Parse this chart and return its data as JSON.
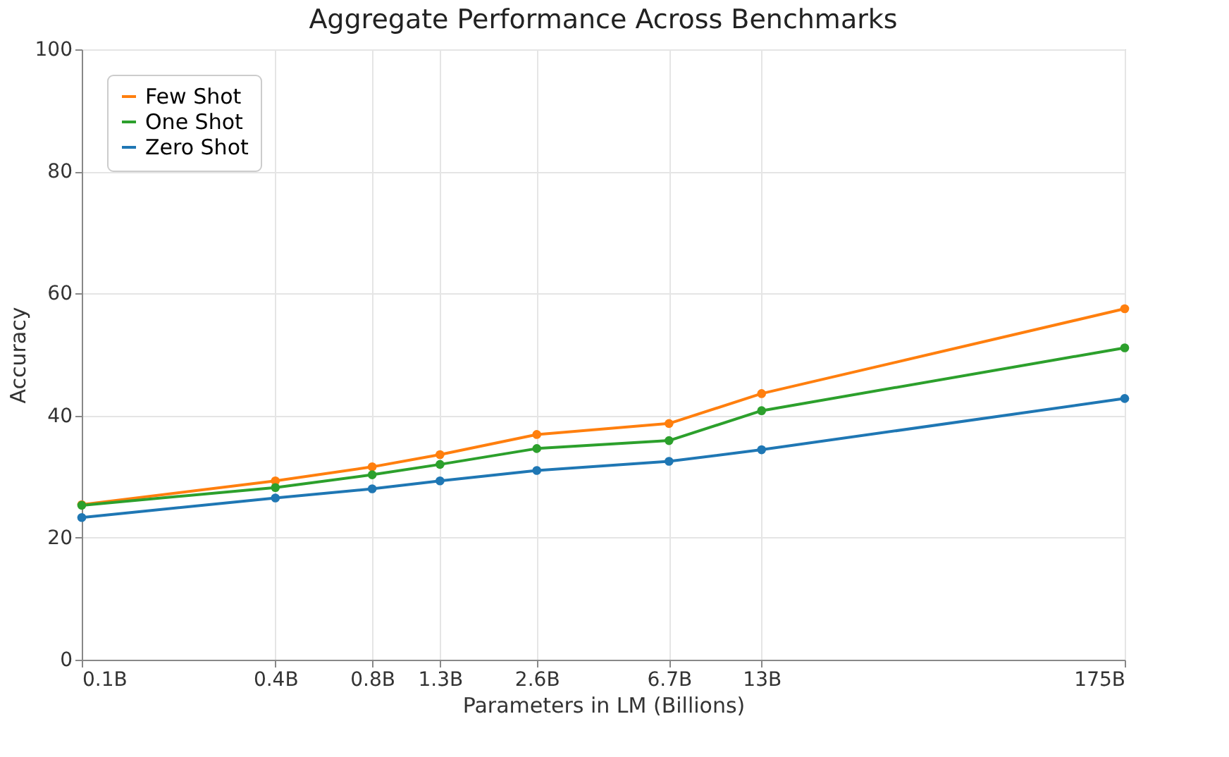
{
  "chart_data": {
    "type": "line",
    "title": "Aggregate Performance Across Benchmarks",
    "xlabel": "Parameters in LM (Billions)",
    "ylabel": "Accuracy",
    "x": [
      0.1,
      0.4,
      0.8,
      1.3,
      2.6,
      6.7,
      13,
      175
    ],
    "series": [
      {
        "name": "Few Shot",
        "color": "#ff7f0e",
        "values": [
          25.4,
          29.3,
          31.6,
          33.6,
          36.9,
          38.7,
          43.6,
          57.5
        ]
      },
      {
        "name": "One Shot",
        "color": "#2ca02c",
        "values": [
          25.3,
          28.2,
          30.3,
          32.0,
          34.6,
          35.9,
          40.8,
          51.1
        ]
      },
      {
        "name": "Zero Shot",
        "color": "#1f77b4",
        "values": [
          23.3,
          26.5,
          28.0,
          29.3,
          31.0,
          32.5,
          34.4,
          42.8
        ]
      }
    ],
    "log": "x",
    "xlim": [
      0.1,
      175
    ],
    "xticks": [
      {
        "value": 0.1,
        "label": "0.1B"
      },
      {
        "value": 0.4,
        "label": "0.4B"
      },
      {
        "value": 0.8,
        "label": "0.8B"
      },
      {
        "value": 1.3,
        "label": "1.3B"
      },
      {
        "value": 2.6,
        "label": "2.6B"
      },
      {
        "value": 6.7,
        "label": "6.7B"
      },
      {
        "value": 13,
        "label": "13B"
      },
      {
        "value": 175,
        "label": "175B"
      }
    ],
    "ylim": [
      0,
      100
    ],
    "yticks": [
      0,
      20,
      40,
      60,
      80,
      100
    ],
    "grid": true,
    "legend": "top left",
    "marker": "circle",
    "line_style": "solid"
  }
}
